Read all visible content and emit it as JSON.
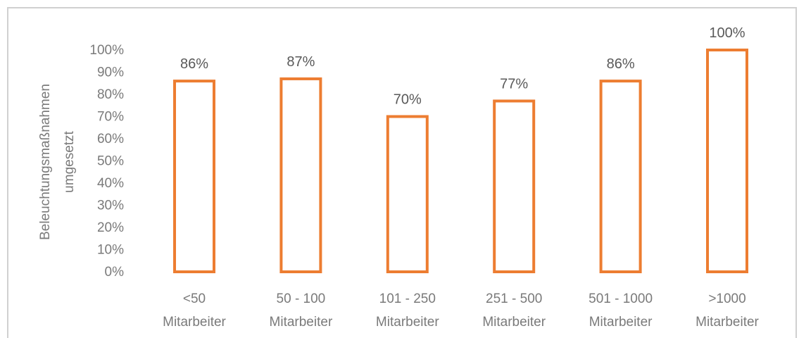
{
  "chart_data": {
    "type": "bar",
    "categories": [
      [
        "<50",
        "Mitarbeiter"
      ],
      [
        "50 - 100",
        "Mitarbeiter"
      ],
      [
        "101 - 250",
        "Mitarbeiter"
      ],
      [
        "251 - 500",
        "Mitarbeiter"
      ],
      [
        "501 - 1000",
        "Mitarbeiter"
      ],
      [
        ">1000",
        "Mitarbeiter"
      ]
    ],
    "values": [
      86,
      87,
      70,
      77,
      86,
      100
    ],
    "data_labels": [
      "86%",
      "87%",
      "70%",
      "77%",
      "86%",
      "100%"
    ],
    "ylabel": [
      "Beleuchtungsmaßnahmen",
      "umgesetzt"
    ],
    "ylim": [
      0,
      100
    ],
    "yticks": [
      "0%",
      "10%",
      "20%",
      "30%",
      "40%",
      "50%",
      "60%",
      "70%",
      "80%",
      "90%",
      "100%"
    ],
    "grid": false,
    "bar_style": "outline",
    "colors": {
      "bar": "#ED7D31"
    }
  }
}
